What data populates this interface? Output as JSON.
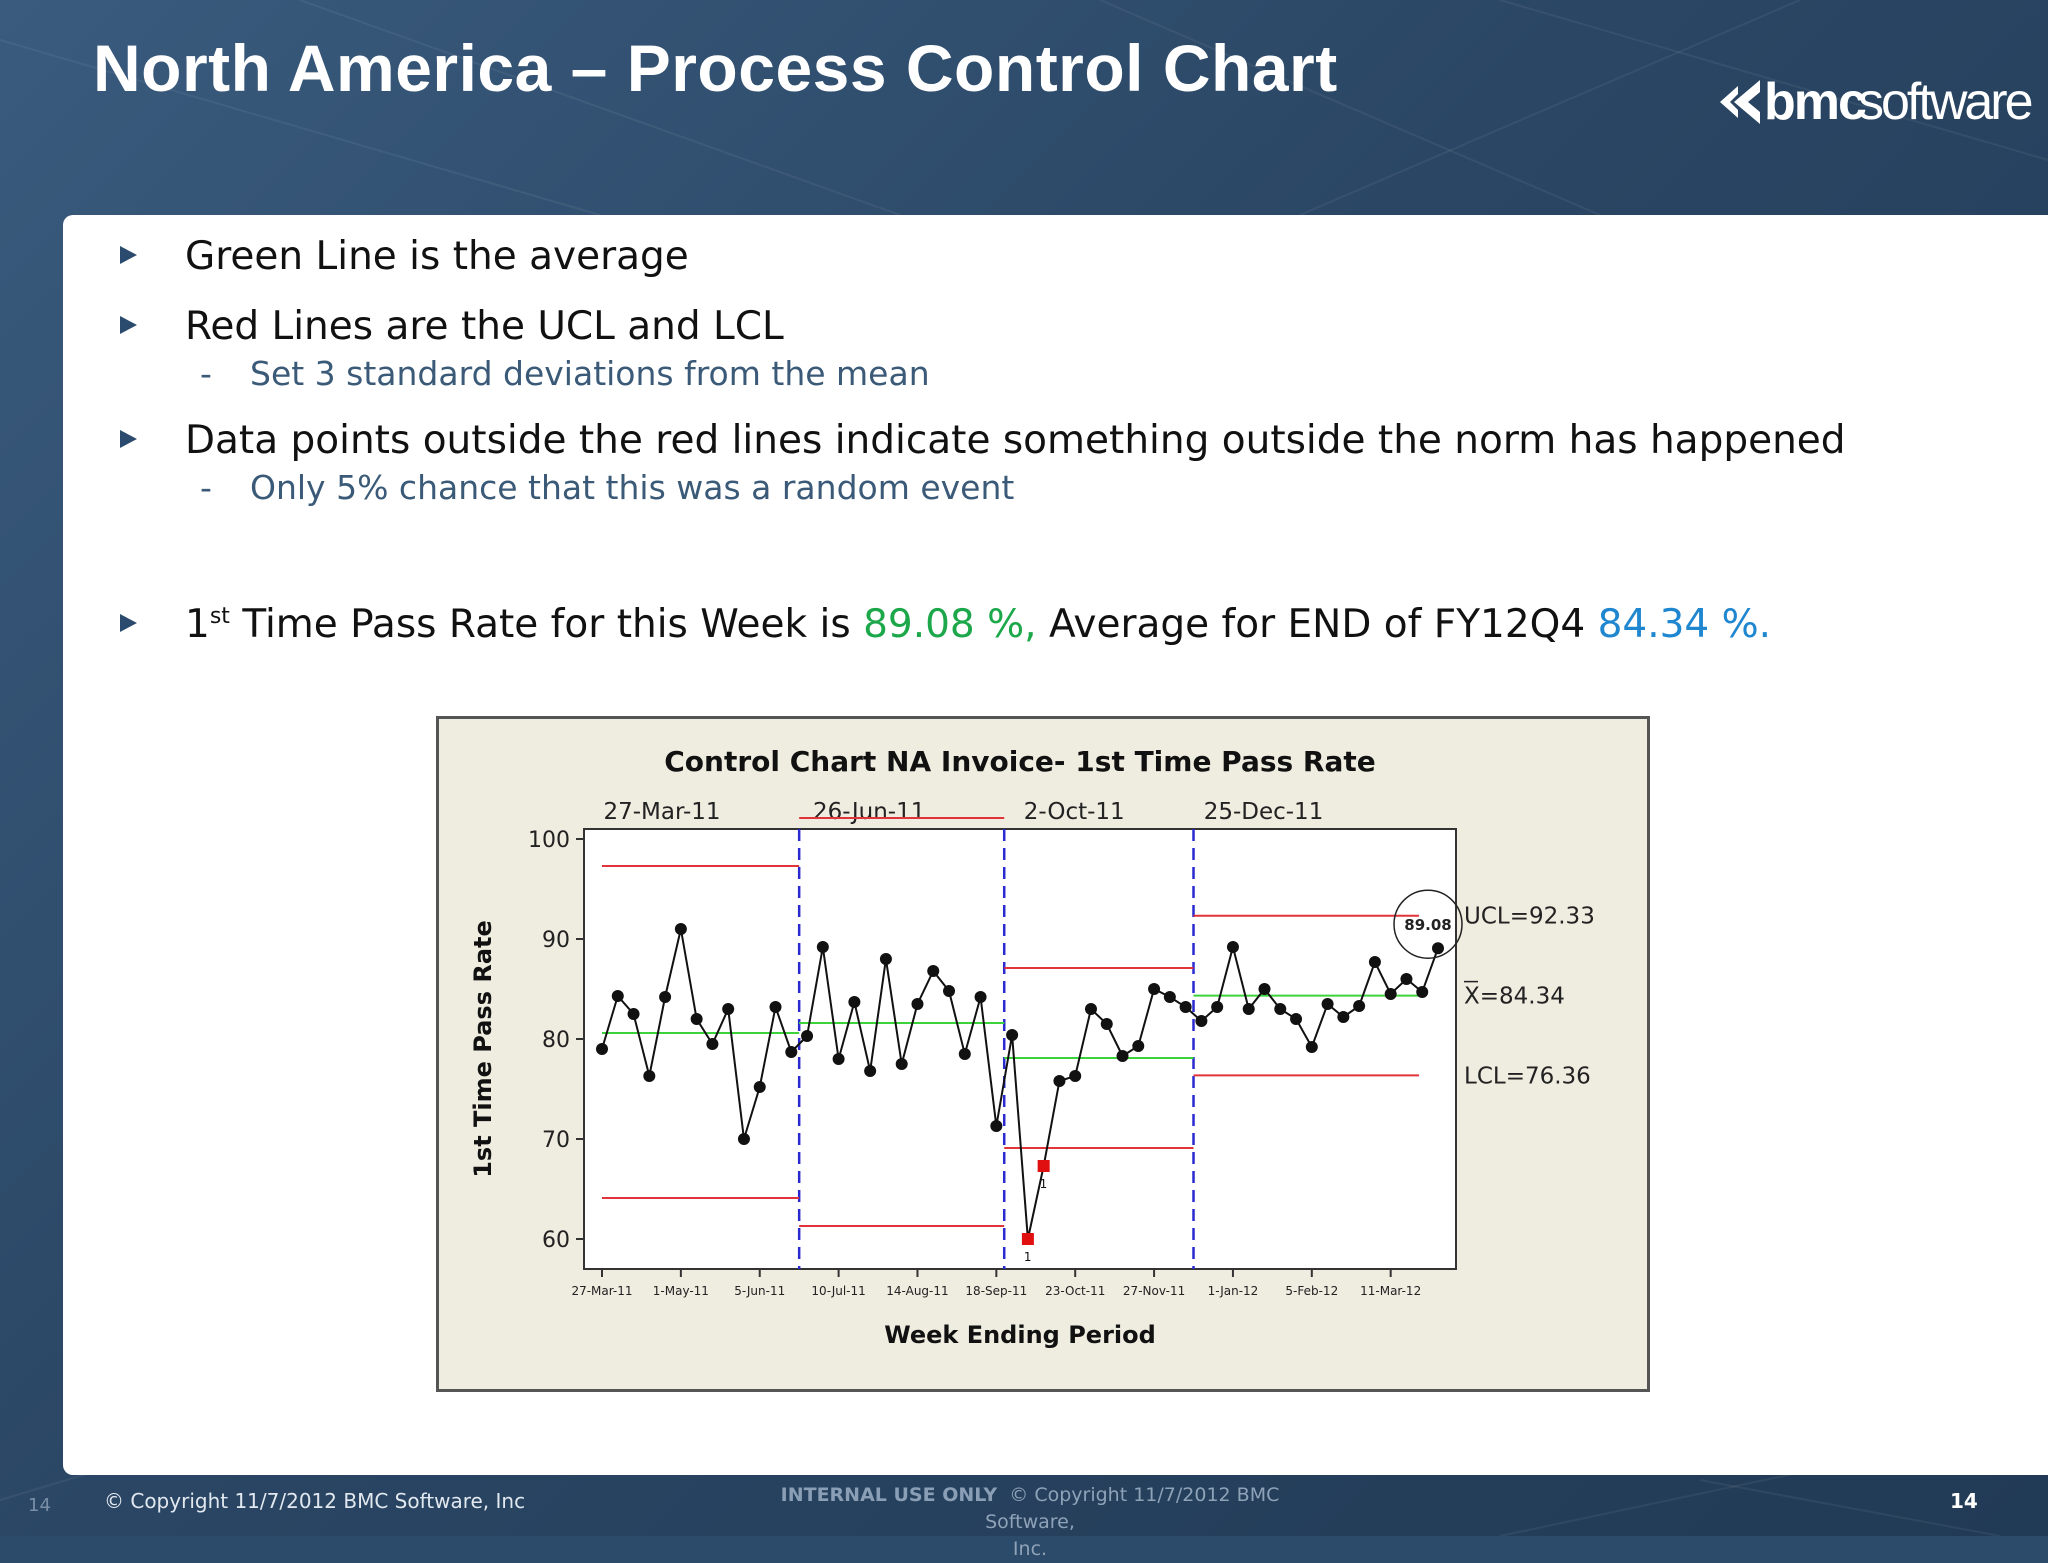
{
  "slide": {
    "title": "North America – Process Control Chart",
    "logo_bmc": "bmc",
    "logo_software": "software",
    "logo_icon": "bmc-chevron-icon"
  },
  "bullets": [
    {
      "text": "Green Line is the average"
    },
    {
      "text": "Red Lines are the UCL and LCL",
      "sub": "Set 3 standard deviations from the mean"
    },
    {
      "text": "Data points outside the red lines indicate something outside the norm has happened",
      "sub": "Only 5% chance that this was a random event"
    }
  ],
  "pass_rate": {
    "prefix_num": "1",
    "prefix_sup": "st",
    "lead": " Time Pass Rate for this Week is ",
    "week_value": "89.08 %,",
    "middle": " Average for END of FY12Q4  ",
    "avg_value": "84.34 %."
  },
  "sub_dash": "-",
  "colors": {
    "green": "#1ca84a",
    "blue": "#1f86d0",
    "ucl_lcl": "#e0343a",
    "mean": "#3cd23c",
    "phase": "#2a2ad0"
  },
  "chart_data": {
    "type": "line",
    "title": "Control Chart NA Invoice- 1st Time Pass Rate",
    "xlabel": "Week Ending Period",
    "ylabel": "1st Time Pass Rate",
    "ylim": [
      57,
      101
    ],
    "yticks": [
      60,
      70,
      80,
      90,
      100
    ],
    "xtick_labels": [
      "27-Mar-11",
      "1-May-11",
      "5-Jun-11",
      "10-Jul-11",
      "14-Aug-11",
      "18-Sep-11",
      "23-Oct-11",
      "27-Nov-11",
      "1-Jan-12",
      "5-Feb-12",
      "11-Mar-12"
    ],
    "xtick_index": [
      0,
      5,
      10,
      15,
      20,
      25,
      30,
      35,
      40,
      45,
      50
    ],
    "phase_labels": [
      "27-Mar-11",
      "26-Jun-11",
      "2-Oct-11",
      "25-Dec-11"
    ],
    "phase_boundaries": [
      12.5,
      25.5,
      37.5
    ],
    "phases": [
      {
        "start": 0,
        "end": 12.5,
        "ucl": 97.3,
        "mean": 80.6,
        "lcl": 64.1
      },
      {
        "start": 12.5,
        "end": 25.5,
        "ucl": 102.1,
        "mean": 81.6,
        "lcl": 61.3
      },
      {
        "start": 25.5,
        "end": 37.5,
        "ucl": 87.1,
        "mean": 78.1,
        "lcl": 69.1
      },
      {
        "start": 37.5,
        "end": 51.8,
        "ucl": 92.33,
        "mean": 84.34,
        "lcl": 76.36
      }
    ],
    "values": [
      79,
      84.3,
      82.5,
      76.3,
      84.2,
      91,
      82,
      79.5,
      83,
      70,
      75.2,
      83.2,
      78.7,
      80.3,
      89.2,
      78,
      83.7,
      76.8,
      88,
      77.5,
      83.5,
      86.8,
      84.8,
      78.5,
      84.2,
      71.3,
      80.4,
      60,
      67.3,
      75.8,
      76.3,
      83,
      81.5,
      78.3,
      79.3,
      85,
      84.2,
      83.2,
      81.8,
      83.2,
      89.2,
      83,
      85,
      83,
      82,
      79.2,
      83.5,
      82.2,
      83.3,
      87.7,
      84.5,
      86,
      84.7,
      89.08
    ],
    "out_of_control_points": [
      27,
      28
    ],
    "out_of_control_marks": [
      "1",
      "1"
    ],
    "highlight": {
      "index": 53,
      "label": "89.08"
    },
    "right_labels": {
      "ucl": "UCL=92.33",
      "mean": "X=84.34",
      "lcl": "LCL=76.36"
    }
  },
  "footer": {
    "page_left": "14",
    "copyright": "© Copyright 11/7/2012 BMC Software, Inc",
    "internal": "INTERNAL USE ONLY",
    "mid_copyright": "© Copyright 11/7/2012 BMC Software,",
    "mid_copyright_2": "Inc.",
    "page_right": "14"
  }
}
